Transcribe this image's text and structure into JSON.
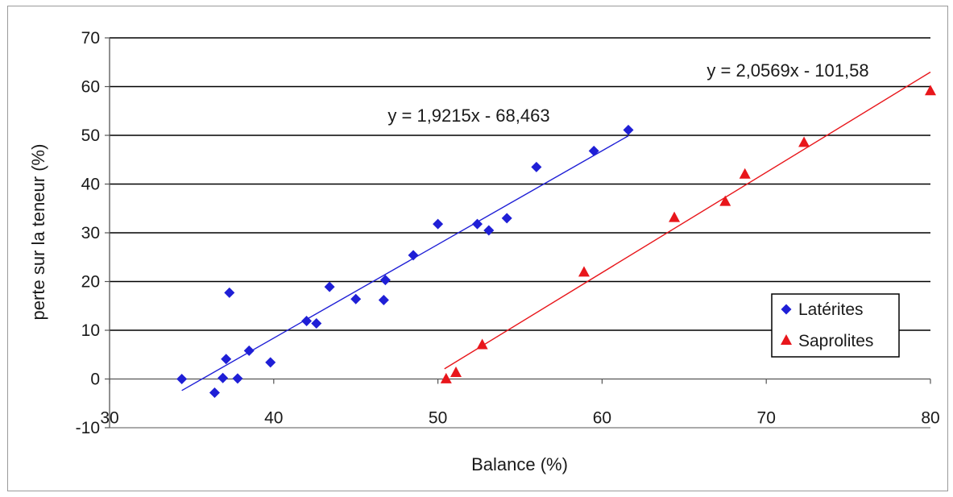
{
  "chart_data": {
    "type": "scatter",
    "title": "",
    "xlabel": "Balance (%)",
    "ylabel": "perte sur la teneur (%)",
    "xlim": [
      30,
      80
    ],
    "ylim": [
      -10,
      70
    ],
    "x_ticks": [
      30,
      40,
      50,
      60,
      70,
      80
    ],
    "y_ticks": [
      -10,
      0,
      10,
      20,
      30,
      40,
      50,
      60,
      70
    ],
    "grid": "horizontal",
    "legend_position": "right",
    "series": [
      {
        "name": "Latérites",
        "marker": "diamond",
        "color": "#1f1fd6",
        "points": [
          [
            34.4,
            0.0
          ],
          [
            36.4,
            -2.8
          ],
          [
            36.9,
            0.2
          ],
          [
            37.1,
            4.1
          ],
          [
            37.3,
            17.7
          ],
          [
            37.8,
            0.1
          ],
          [
            38.5,
            5.8
          ],
          [
            39.8,
            3.4
          ],
          [
            42.0,
            11.9
          ],
          [
            42.6,
            11.4
          ],
          [
            43.4,
            18.9
          ],
          [
            45.0,
            16.4
          ],
          [
            46.7,
            16.2
          ],
          [
            46.8,
            20.3
          ],
          [
            48.5,
            25.4
          ],
          [
            50.0,
            31.8
          ],
          [
            52.4,
            31.8
          ],
          [
            53.1,
            30.5
          ],
          [
            54.2,
            33.0
          ],
          [
            56.0,
            43.5
          ],
          [
            59.5,
            46.8
          ],
          [
            61.6,
            51.1
          ]
        ],
        "trendline": {
          "equation": "y = 1,9215x - 68,463",
          "slope": 1.9215,
          "intercept": -68.463,
          "x_range": [
            34.4,
            61.6
          ]
        }
      },
      {
        "name": "Saprolites",
        "marker": "triangle",
        "color": "#e8161b",
        "points": [
          [
            50.5,
            0.1
          ],
          [
            51.1,
            1.4
          ],
          [
            52.7,
            7.1
          ],
          [
            58.9,
            22.0
          ],
          [
            64.4,
            33.2
          ],
          [
            67.5,
            36.5
          ],
          [
            68.7,
            42.1
          ],
          [
            72.3,
            48.6
          ],
          [
            80.0,
            59.2
          ]
        ],
        "trendline": {
          "equation": "y = 2,0569x - 101,58",
          "slope": 2.0569,
          "intercept": -101.58,
          "x_range": [
            50.4,
            80.0
          ]
        }
      }
    ]
  }
}
